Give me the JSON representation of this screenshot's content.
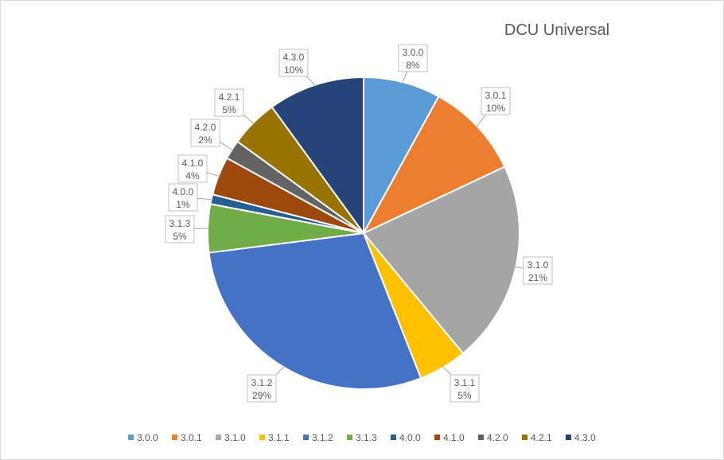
{
  "chart_data": {
    "type": "pie",
    "title": "DCU Universal",
    "categories": [
      "3.0.0",
      "3.0.1",
      "3.1.0",
      "3.1.1",
      "3.1.2",
      "3.1.3",
      "4.0.0",
      "4.1.0",
      "4.2.0",
      "4.2.1",
      "4.3.0"
    ],
    "values": [
      8,
      10,
      21,
      5,
      29,
      5,
      1,
      4,
      2,
      5,
      10
    ],
    "data_labels": [
      "8%",
      "10%",
      "21%",
      "5%",
      "29%",
      "5%",
      "1%",
      "4%",
      "2%",
      "5%",
      "10%"
    ],
    "colors": [
      "#5b9bd5",
      "#ed7d31",
      "#a5a5a5",
      "#ffc000",
      "#4472c4",
      "#70ad47",
      "#255e91",
      "#9e480e",
      "#636363",
      "#997300",
      "#264478"
    ],
    "legend_position": "bottom"
  }
}
